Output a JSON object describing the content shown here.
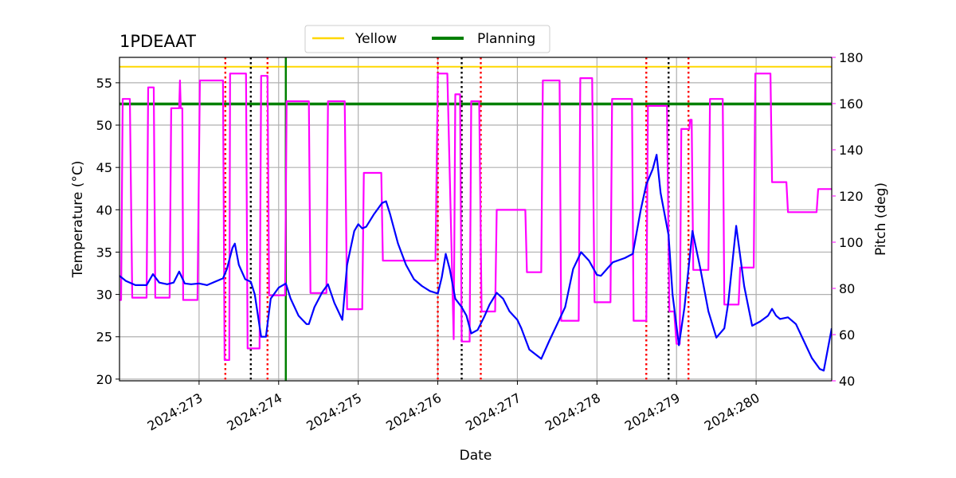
{
  "chart_data": {
    "type": "line",
    "title": "1PDEAAT",
    "xlabel": "Date",
    "ylabel": "Temperature ($^\\circ$C)",
    "y2label": "Pitch (deg)",
    "x_tick_values": [
      273,
      274,
      275,
      276,
      277,
      278,
      279,
      280
    ],
    "x_tick_labels": [
      "2024:273",
      "2024:274",
      "2024:275",
      "2024:276",
      "2024:277",
      "2024:278",
      "2024:279",
      "2024:280"
    ],
    "xlim": [
      272.0,
      280.95
    ],
    "ylim": [
      19.8,
      58.0
    ],
    "y_ticks": [
      20,
      25,
      30,
      35,
      40,
      45,
      50,
      55
    ],
    "y2lim": [
      40,
      180
    ],
    "y2_ticks": [
      40,
      60,
      80,
      100,
      120,
      140,
      160,
      180
    ],
    "grid": true,
    "legend": {
      "position": "top-center",
      "entries": [
        {
          "name": "Yellow",
          "color": "#ffd700"
        },
        {
          "name": "Planning",
          "color": "#008000"
        }
      ]
    },
    "limits": {
      "yellow": 56.9,
      "planning": 52.5
    },
    "planning_time": 274.09,
    "red_event_lines": [
      273.33,
      273.86,
      276.0,
      276.54,
      278.62,
      279.15
    ],
    "black_event_lines": [
      273.65,
      276.3,
      278.9
    ],
    "colors": {
      "temperature": "#0000ff",
      "pitch": "#ff00ff",
      "red_events": "#ff0000",
      "black_events": "#000000"
    },
    "series": [
      {
        "name": "Temperature",
        "axis": "left",
        "color": "#0000ff",
        "points": [
          [
            272.0,
            32.2
          ],
          [
            272.08,
            31.6
          ],
          [
            272.2,
            31.1
          ],
          [
            272.34,
            31.1
          ],
          [
            272.42,
            32.4
          ],
          [
            272.5,
            31.4
          ],
          [
            272.6,
            31.2
          ],
          [
            272.68,
            31.4
          ],
          [
            272.75,
            32.7
          ],
          [
            272.82,
            31.3
          ],
          [
            272.9,
            31.2
          ],
          [
            273.0,
            31.3
          ],
          [
            273.1,
            31.1
          ],
          [
            273.2,
            31.5
          ],
          [
            273.3,
            31.9
          ],
          [
            273.35,
            33.0
          ],
          [
            273.42,
            35.5
          ],
          [
            273.45,
            36.0
          ],
          [
            273.5,
            33.5
          ],
          [
            273.58,
            31.8
          ],
          [
            273.65,
            31.5
          ],
          [
            273.7,
            30.0
          ],
          [
            273.78,
            25.0
          ],
          [
            273.84,
            25.0
          ],
          [
            273.9,
            29.5
          ],
          [
            274.0,
            30.8
          ],
          [
            274.09,
            31.3
          ],
          [
            274.15,
            29.5
          ],
          [
            274.25,
            27.5
          ],
          [
            274.35,
            26.5
          ],
          [
            274.38,
            26.5
          ],
          [
            274.45,
            28.5
          ],
          [
            274.55,
            30.3
          ],
          [
            274.62,
            31.2
          ],
          [
            274.7,
            29.0
          ],
          [
            274.8,
            27.0
          ],
          [
            274.86,
            33.5
          ],
          [
            274.95,
            37.5
          ],
          [
            275.0,
            38.3
          ],
          [
            275.05,
            37.8
          ],
          [
            275.1,
            38.0
          ],
          [
            275.2,
            39.5
          ],
          [
            275.3,
            40.8
          ],
          [
            275.35,
            41.0
          ],
          [
            275.4,
            39.5
          ],
          [
            275.5,
            36.0
          ],
          [
            275.6,
            33.5
          ],
          [
            275.7,
            31.8
          ],
          [
            275.8,
            31.0
          ],
          [
            275.9,
            30.4
          ],
          [
            276.0,
            30.1
          ],
          [
            276.05,
            32.0
          ],
          [
            276.1,
            34.8
          ],
          [
            276.15,
            33.0
          ],
          [
            276.22,
            29.5
          ],
          [
            276.3,
            28.5
          ],
          [
            276.36,
            27.5
          ],
          [
            276.42,
            25.4
          ],
          [
            276.5,
            25.8
          ],
          [
            276.58,
            27.3
          ],
          [
            276.65,
            28.8
          ],
          [
            276.74,
            30.2
          ],
          [
            276.82,
            29.5
          ],
          [
            276.9,
            28.0
          ],
          [
            277.0,
            27.0
          ],
          [
            277.05,
            26.0
          ],
          [
            277.15,
            23.5
          ],
          [
            277.3,
            22.4
          ],
          [
            277.4,
            24.5
          ],
          [
            277.5,
            26.5
          ],
          [
            277.6,
            28.5
          ],
          [
            277.7,
            33.0
          ],
          [
            277.8,
            35.0
          ],
          [
            277.9,
            34.0
          ],
          [
            278.0,
            32.3
          ],
          [
            278.05,
            32.2
          ],
          [
            278.2,
            33.8
          ],
          [
            278.35,
            34.3
          ],
          [
            278.45,
            34.8
          ],
          [
            278.55,
            40.0
          ],
          [
            278.62,
            43.0
          ],
          [
            278.7,
            44.8
          ],
          [
            278.75,
            46.5
          ],
          [
            278.8,
            42.0
          ],
          [
            278.9,
            37.0
          ],
          [
            278.95,
            30.0
          ],
          [
            279.03,
            24.0
          ],
          [
            279.1,
            28.5
          ],
          [
            279.2,
            37.5
          ],
          [
            279.3,
            33.0
          ],
          [
            279.4,
            28.0
          ],
          [
            279.5,
            24.9
          ],
          [
            279.6,
            26.0
          ],
          [
            279.65,
            29.0
          ],
          [
            279.75,
            38.1
          ],
          [
            279.85,
            31.0
          ],
          [
            279.95,
            26.3
          ],
          [
            280.05,
            26.8
          ],
          [
            280.15,
            27.5
          ],
          [
            280.2,
            28.3
          ],
          [
            280.25,
            27.5
          ],
          [
            280.3,
            27.1
          ],
          [
            280.4,
            27.3
          ],
          [
            280.5,
            26.5
          ],
          [
            280.6,
            24.5
          ],
          [
            280.7,
            22.5
          ],
          [
            280.8,
            21.2
          ],
          [
            280.85,
            21.0
          ],
          [
            280.95,
            26.0
          ]
        ]
      },
      {
        "name": "Pitch",
        "axis": "right",
        "color": "#ff00ff",
        "points": [
          [
            272.0,
            75
          ],
          [
            272.02,
            75
          ],
          [
            272.04,
            162
          ],
          [
            272.13,
            162
          ],
          [
            272.16,
            76
          ],
          [
            272.34,
            76
          ],
          [
            272.36,
            167
          ],
          [
            272.43,
            167
          ],
          [
            272.45,
            76
          ],
          [
            272.63,
            76
          ],
          [
            272.65,
            158
          ],
          [
            272.75,
            158
          ],
          [
            272.76,
            170
          ],
          [
            272.77,
            158
          ],
          [
            272.79,
            158
          ],
          [
            272.8,
            75
          ],
          [
            272.98,
            75
          ],
          [
            273.01,
            170
          ],
          [
            273.3,
            170
          ],
          [
            273.32,
            49
          ],
          [
            273.38,
            49
          ],
          [
            273.39,
            173
          ],
          [
            273.59,
            173
          ],
          [
            273.61,
            54
          ],
          [
            273.76,
            54
          ],
          [
            273.78,
            172
          ],
          [
            273.86,
            172
          ],
          [
            273.88,
            77
          ],
          [
            274.08,
            77
          ],
          [
            274.1,
            161
          ],
          [
            274.38,
            161
          ],
          [
            274.4,
            78
          ],
          [
            274.6,
            78
          ],
          [
            274.62,
            161
          ],
          [
            274.83,
            161
          ],
          [
            274.86,
            71
          ],
          [
            275.05,
            71
          ],
          [
            275.07,
            130
          ],
          [
            275.29,
            130
          ],
          [
            275.31,
            92
          ],
          [
            275.97,
            92
          ],
          [
            276.0,
            173
          ],
          [
            276.12,
            173
          ],
          [
            276.2,
            58
          ],
          [
            276.22,
            164
          ],
          [
            276.28,
            164
          ],
          [
            276.3,
            57
          ],
          [
            276.4,
            57
          ],
          [
            276.42,
            161
          ],
          [
            276.52,
            161
          ],
          [
            276.55,
            70
          ],
          [
            276.72,
            70
          ],
          [
            276.74,
            114
          ],
          [
            277.1,
            114
          ],
          [
            277.12,
            87
          ],
          [
            277.3,
            87
          ],
          [
            277.32,
            170
          ],
          [
            277.53,
            170
          ],
          [
            277.55,
            66
          ],
          [
            277.77,
            66
          ],
          [
            277.79,
            171
          ],
          [
            277.94,
            171
          ],
          [
            277.97,
            74
          ],
          [
            278.17,
            74
          ],
          [
            278.19,
            162
          ],
          [
            278.44,
            162
          ],
          [
            278.46,
            66
          ],
          [
            278.62,
            66
          ],
          [
            278.64,
            159
          ],
          [
            278.88,
            159
          ],
          [
            278.91,
            70
          ],
          [
            278.97,
            70
          ],
          [
            279.0,
            56
          ],
          [
            279.04,
            56
          ],
          [
            279.06,
            149
          ],
          [
            279.16,
            149
          ],
          [
            279.17,
            153
          ],
          [
            279.19,
            153
          ],
          [
            279.21,
            88
          ],
          [
            279.4,
            88
          ],
          [
            279.42,
            162
          ],
          [
            279.58,
            162
          ],
          [
            279.6,
            73
          ],
          [
            279.78,
            73
          ],
          [
            279.8,
            89
          ],
          [
            279.97,
            89
          ],
          [
            279.99,
            173
          ],
          [
            280.18,
            173
          ],
          [
            280.2,
            126
          ],
          [
            280.38,
            126
          ],
          [
            280.4,
            113
          ],
          [
            280.76,
            113
          ],
          [
            280.78,
            123
          ],
          [
            280.95,
            123
          ]
        ]
      }
    ]
  }
}
